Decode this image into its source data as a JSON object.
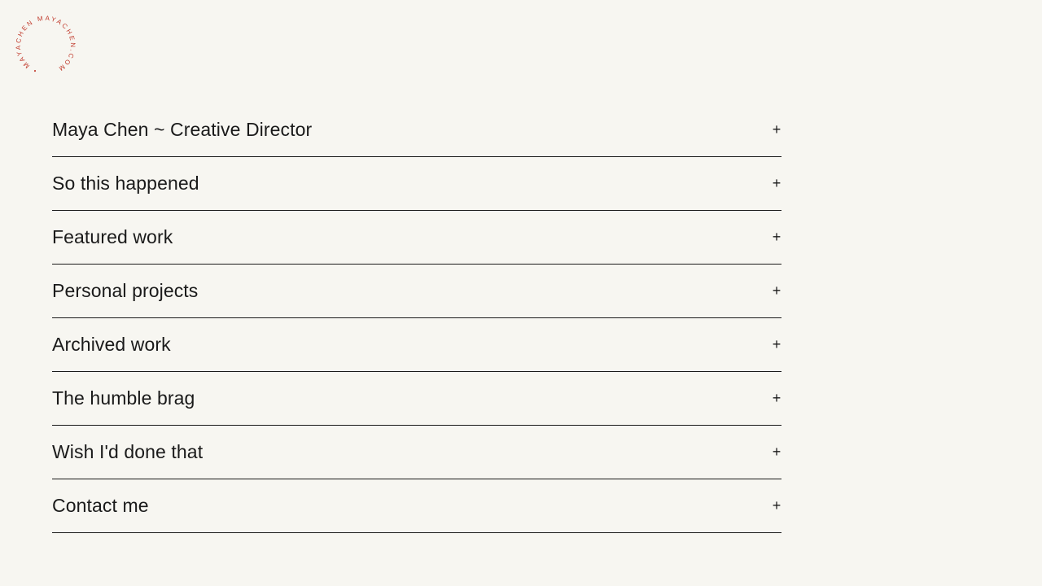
{
  "logo": {
    "text": "• MAYACHEN MAYACHEN.COM",
    "color": "#c0392b"
  },
  "accordion": {
    "items": [
      {
        "label": "Maya Chen ~ Creative Director",
        "icon": "plus-icon",
        "toggle": "+"
      },
      {
        "label": "So this happened",
        "icon": "plus-icon",
        "toggle": "+"
      },
      {
        "label": "Featured work",
        "icon": "plus-icon",
        "toggle": "+"
      },
      {
        "label": "Personal projects",
        "icon": "plus-icon",
        "toggle": "+"
      },
      {
        "label": "Archived work",
        "icon": "plus-icon",
        "toggle": "+"
      },
      {
        "label": "The humble brag",
        "icon": "plus-icon",
        "toggle": "+"
      },
      {
        "label": "Wish I'd done that",
        "icon": "plus-icon",
        "toggle": "+"
      },
      {
        "label": "Contact me",
        "icon": "plus-icon",
        "toggle": "+"
      }
    ]
  }
}
